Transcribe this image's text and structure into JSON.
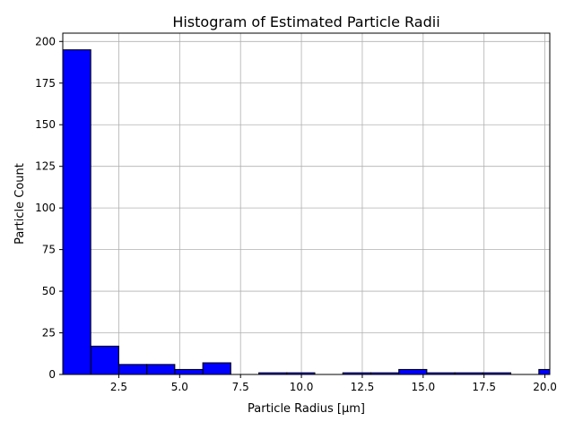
{
  "chart_data": {
    "type": "bar",
    "title": "Histogram of Estimated Particle Radii",
    "xlabel": "Particle Radius [μm]",
    "ylabel": "Particle Count",
    "xlim": [
      0.2,
      20.2
    ],
    "ylim": [
      0,
      205
    ],
    "xticks": [
      2.5,
      5.0,
      7.5,
      10.0,
      12.5,
      15.0,
      17.5,
      20.0
    ],
    "xtick_labels": [
      "2.5",
      "5.0",
      "7.5",
      "10.0",
      "12.5",
      "15.0",
      "17.5",
      "20.0"
    ],
    "yticks": [
      0,
      25,
      50,
      75,
      100,
      125,
      150,
      175,
      200
    ],
    "ytick_labels": [
      "0",
      "25",
      "50",
      "75",
      "100",
      "125",
      "150",
      "175",
      "200"
    ],
    "grid": true,
    "bins": [
      {
        "x0": 0.2,
        "x1": 1.35,
        "count": 195
      },
      {
        "x0": 1.35,
        "x1": 2.5,
        "count": 17
      },
      {
        "x0": 2.5,
        "x1": 3.65,
        "count": 6
      },
      {
        "x0": 3.65,
        "x1": 4.8,
        "count": 6
      },
      {
        "x0": 4.8,
        "x1": 5.95,
        "count": 3
      },
      {
        "x0": 5.95,
        "x1": 7.1,
        "count": 7
      },
      {
        "x0": 7.1,
        "x1": 8.25,
        "count": 0
      },
      {
        "x0": 8.25,
        "x1": 9.4,
        "count": 1
      },
      {
        "x0": 9.4,
        "x1": 10.55,
        "count": 1
      },
      {
        "x0": 10.55,
        "x1": 11.7,
        "count": 0
      },
      {
        "x0": 11.7,
        "x1": 12.85,
        "count": 1
      },
      {
        "x0": 12.85,
        "x1": 14.0,
        "count": 1
      },
      {
        "x0": 14.0,
        "x1": 15.15,
        "count": 3
      },
      {
        "x0": 15.15,
        "x1": 16.3,
        "count": 1
      },
      {
        "x0": 16.3,
        "x1": 17.45,
        "count": 1
      },
      {
        "x0": 17.45,
        "x1": 18.6,
        "count": 1
      },
      {
        "x0": 18.6,
        "x1": 19.75,
        "count": 0
      },
      {
        "x0": 19.75,
        "x1": 20.9,
        "count": 3
      }
    ],
    "bar_color": "#0000ff",
    "edge_color": "#000000",
    "grid_color": "#b0b0b0"
  }
}
